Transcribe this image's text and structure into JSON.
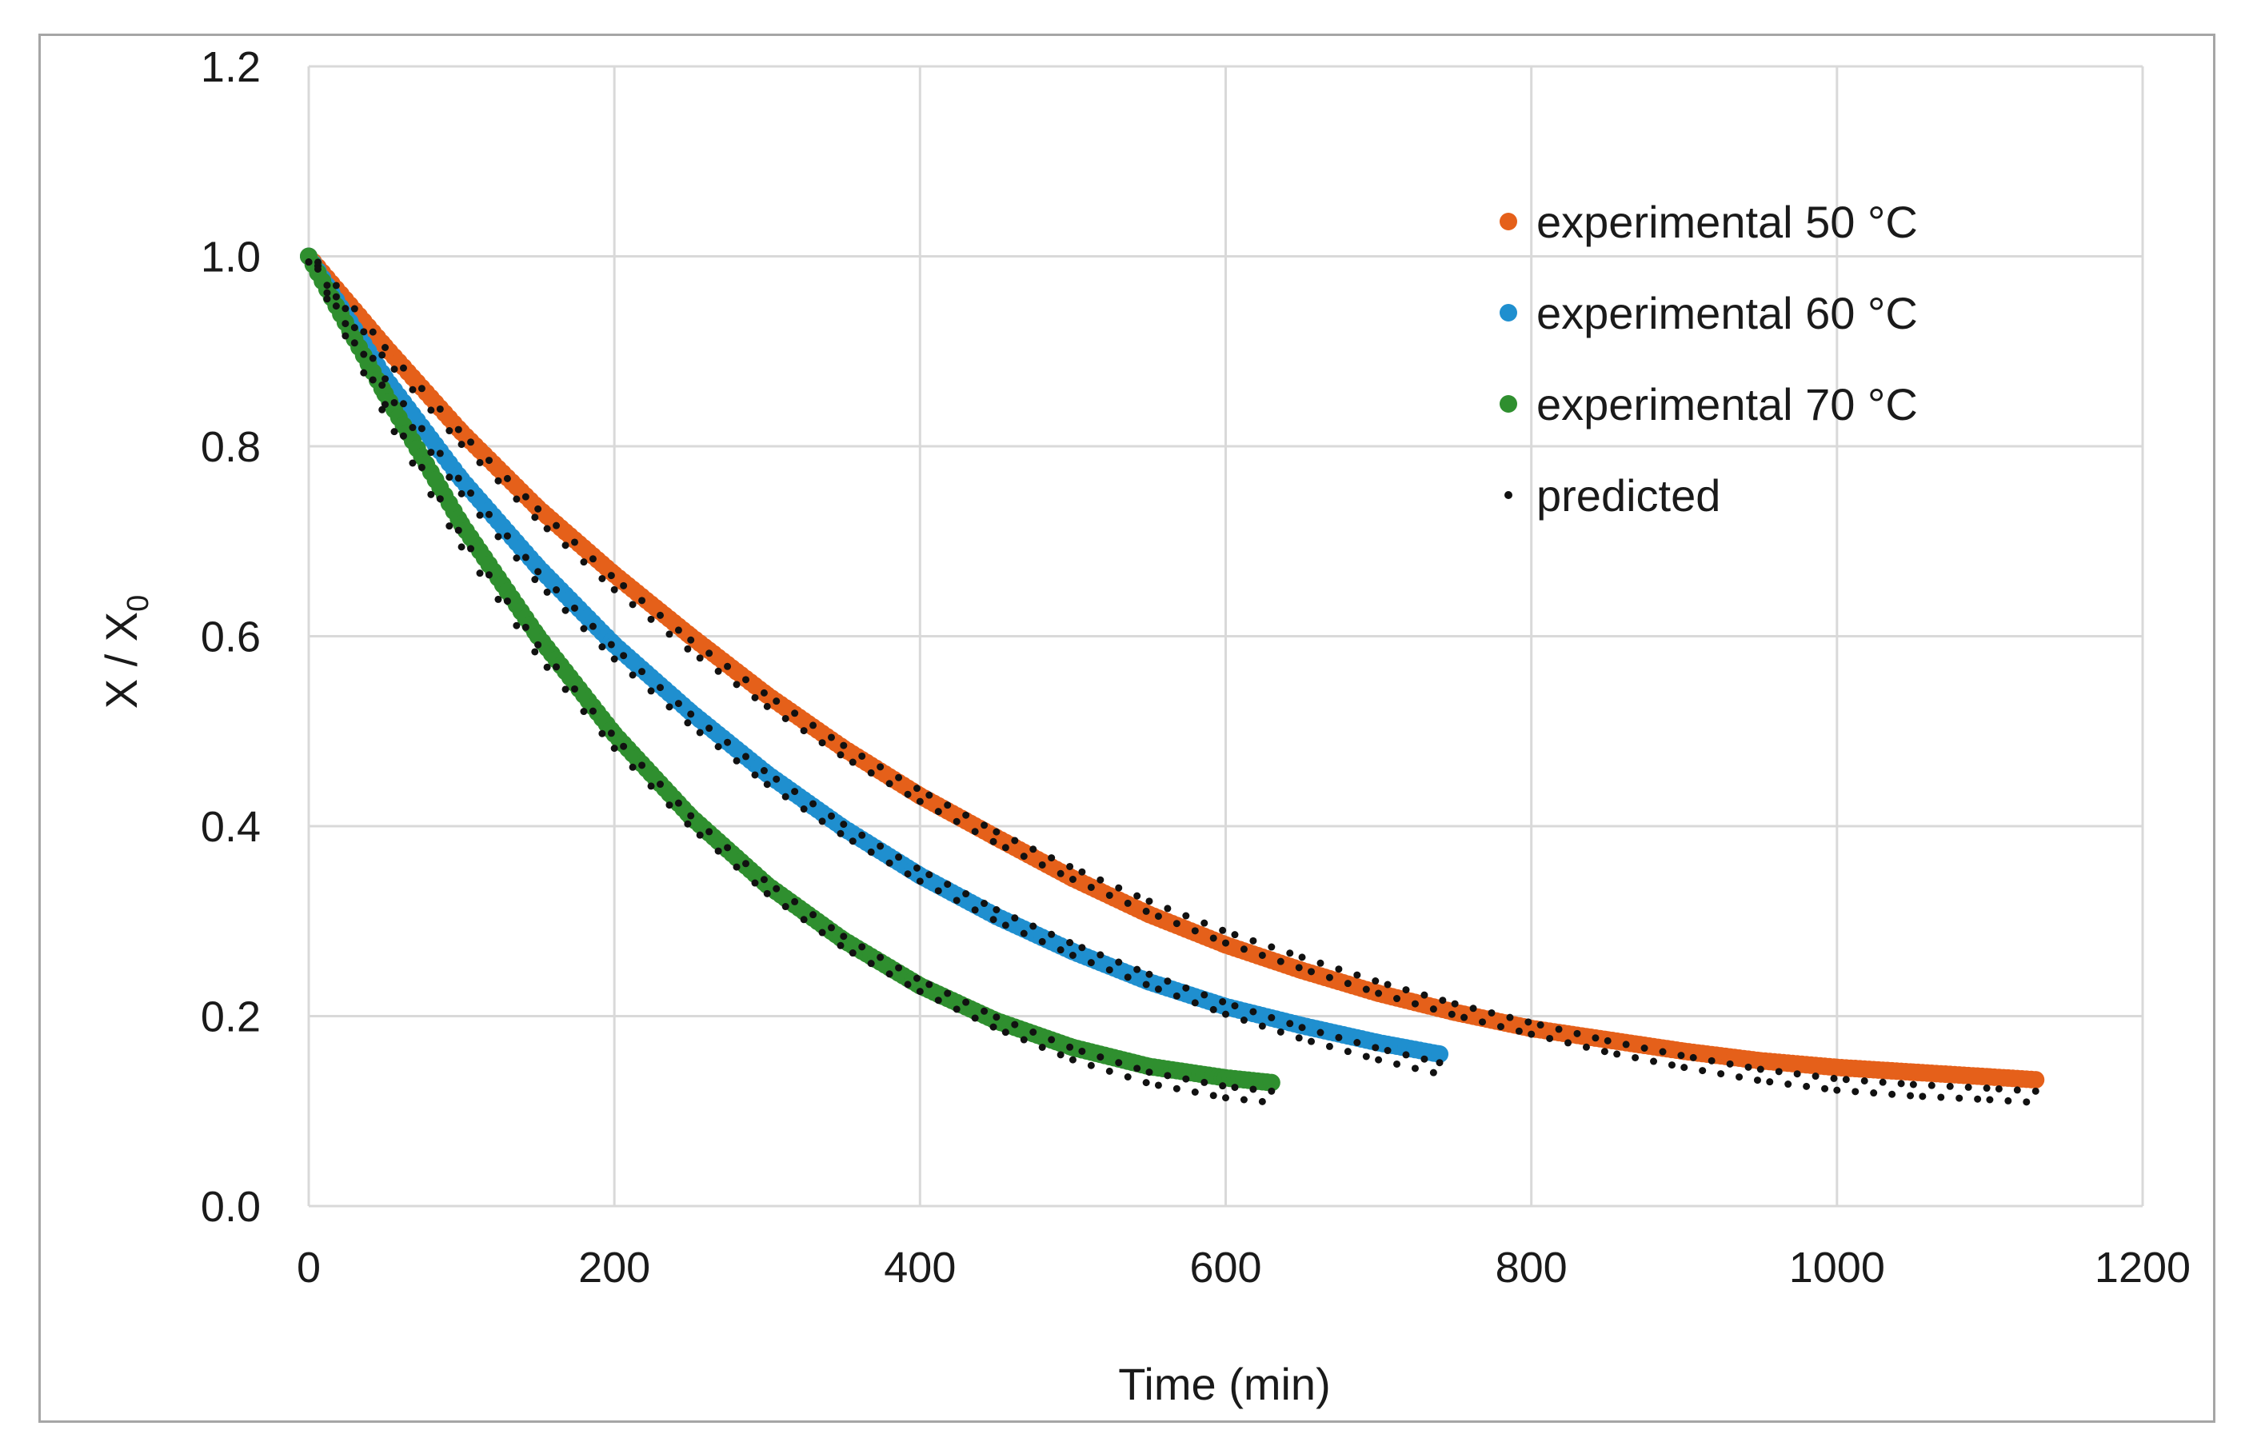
{
  "chart_data": {
    "type": "scatter",
    "title": "",
    "xlabel": "Time (min)",
    "ylabel": "X / X",
    "ylabel_subscript": "0",
    "xlim": [
      0,
      1200
    ],
    "ylim": [
      0,
      1.2
    ],
    "xticks": [
      0,
      200,
      400,
      600,
      800,
      1000,
      1200
    ],
    "xtick_labels": [
      "0",
      "200",
      "400",
      "600",
      "800",
      "1000",
      "1200"
    ],
    "yticks": [
      0,
      0.2,
      0.4,
      0.6,
      0.8,
      1.0,
      1.2
    ],
    "ytick_labels": [
      "0.0",
      "0.2",
      "0.4",
      "0.6",
      "0.8",
      "1.0",
      "1.2"
    ],
    "grid": true,
    "legend_position": "top-right",
    "series": [
      {
        "name": "experimental 50 °C",
        "color": "#e5601a",
        "marker": "large-dot",
        "x": [
          0,
          50,
          100,
          150,
          200,
          250,
          300,
          350,
          400,
          450,
          500,
          550,
          600,
          650,
          700,
          750,
          800,
          850,
          900,
          950,
          1000,
          1050,
          1100,
          1130
        ],
        "y": [
          1.0,
          0.905,
          0.815,
          0.735,
          0.665,
          0.6,
          0.538,
          0.482,
          0.432,
          0.388,
          0.345,
          0.307,
          0.275,
          0.248,
          0.224,
          0.204,
          0.187,
          0.175,
          0.163,
          0.153,
          0.146,
          0.141,
          0.136,
          0.133
        ]
      },
      {
        "name": "experimental 60 °C",
        "color": "#1f8fcf",
        "marker": "large-dot",
        "x": [
          0,
          50,
          100,
          150,
          200,
          250,
          300,
          350,
          400,
          450,
          500,
          550,
          600,
          650,
          700,
          740
        ],
        "y": [
          1.0,
          0.872,
          0.765,
          0.673,
          0.591,
          0.52,
          0.455,
          0.398,
          0.348,
          0.305,
          0.268,
          0.236,
          0.21,
          0.19,
          0.172,
          0.16
        ]
      },
      {
        "name": "experimental 70 °C",
        "color": "#2f8f2f",
        "marker": "large-dot",
        "x": [
          0,
          50,
          100,
          150,
          200,
          250,
          300,
          350,
          400,
          450,
          500,
          550,
          600,
          630
        ],
        "y": [
          1.0,
          0.855,
          0.718,
          0.6,
          0.497,
          0.41,
          0.338,
          0.28,
          0.232,
          0.195,
          0.167,
          0.147,
          0.135,
          0.13
        ]
      },
      {
        "name": "predicted",
        "color": "#111111",
        "marker": "small-dot",
        "curves": [
          {
            "x": [
              0,
              50,
              100,
              150,
              200,
              250,
              300,
              350,
              400,
              450,
              500,
              550,
              600,
              650,
              700,
              750,
              800,
              850,
              900,
              950,
              1000,
              1050,
              1100,
              1130
            ],
            "y": [
              1.0,
              0.898,
              0.808,
              0.728,
              0.655,
              0.59,
              0.532,
              0.479,
              0.432,
              0.388,
              0.35,
              0.315,
              0.283,
              0.256,
              0.23,
              0.207,
              0.187,
              0.168,
              0.152,
              0.138,
              0.128,
              0.122,
              0.118,
              0.115
            ]
          },
          {
            "x": [
              0,
              50,
              100,
              150,
              200,
              250,
              300,
              350,
              400,
              450,
              500,
              550,
              600,
              650,
              700,
              740
            ],
            "y": [
              1.0,
              0.865,
              0.756,
              0.662,
              0.582,
              0.512,
              0.45,
              0.396,
              0.348,
              0.306,
              0.27,
              0.238,
              0.208,
              0.182,
              0.16,
              0.145
            ]
          },
          {
            "x": [
              0,
              50,
              100,
              150,
              200,
              250,
              300,
              350,
              400,
              450,
              500,
              550,
              600,
              630
            ],
            "y": [
              1.0,
              0.838,
              0.7,
              0.585,
              0.488,
              0.405,
              0.335,
              0.278,
              0.232,
              0.193,
              0.16,
              0.135,
              0.12,
              0.115
            ]
          }
        ]
      }
    ]
  }
}
